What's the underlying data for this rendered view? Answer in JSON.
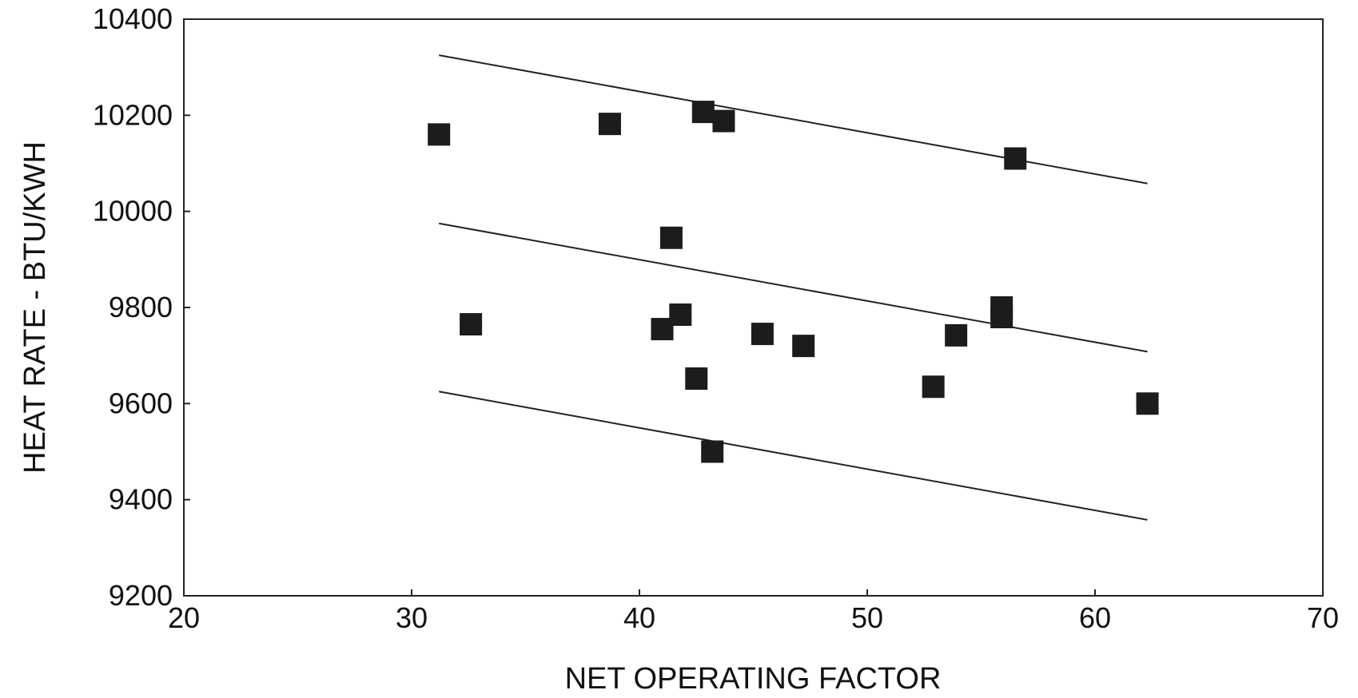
{
  "chart_data": {
    "type": "scatter",
    "title": "",
    "xlabel": "NET OPERATING FACTOR",
    "ylabel": "HEAT RATE - BTU/KWH",
    "xlim": [
      20,
      70
    ],
    "ylim": [
      9200,
      10400
    ],
    "x_ticks": [
      20,
      30,
      40,
      50,
      60,
      70
    ],
    "y_ticks": [
      9200,
      9400,
      9600,
      9800,
      10000,
      10200,
      10400
    ],
    "grid": false,
    "marker": "square",
    "colors": {
      "marker": "#1c1c1c",
      "line": "#222222",
      "axis": "#222222"
    },
    "points": [
      {
        "x": 31.2,
        "y": 10160
      },
      {
        "x": 32.6,
        "y": 9765
      },
      {
        "x": 38.7,
        "y": 10182
      },
      {
        "x": 41.0,
        "y": 9755
      },
      {
        "x": 41.4,
        "y": 9945
      },
      {
        "x": 41.8,
        "y": 9785
      },
      {
        "x": 42.5,
        "y": 9652
      },
      {
        "x": 42.8,
        "y": 10207
      },
      {
        "x": 43.2,
        "y": 9500
      },
      {
        "x": 43.7,
        "y": 10188
      },
      {
        "x": 45.4,
        "y": 9745
      },
      {
        "x": 47.2,
        "y": 9720
      },
      {
        "x": 52.9,
        "y": 9635
      },
      {
        "x": 53.9,
        "y": 9742
      },
      {
        "x": 55.9,
        "y": 9800
      },
      {
        "x": 55.9,
        "y": 9780
      },
      {
        "x": 56.5,
        "y": 10110
      },
      {
        "x": 62.3,
        "y": 9600
      }
    ],
    "lines": [
      {
        "x": [
          31.2,
          62.3
        ],
        "y": [
          10325,
          10058
        ]
      },
      {
        "x": [
          31.2,
          62.3
        ],
        "y": [
          9975,
          9708
        ]
      },
      {
        "x": [
          31.2,
          62.3
        ],
        "y": [
          9625,
          9358
        ]
      }
    ]
  }
}
